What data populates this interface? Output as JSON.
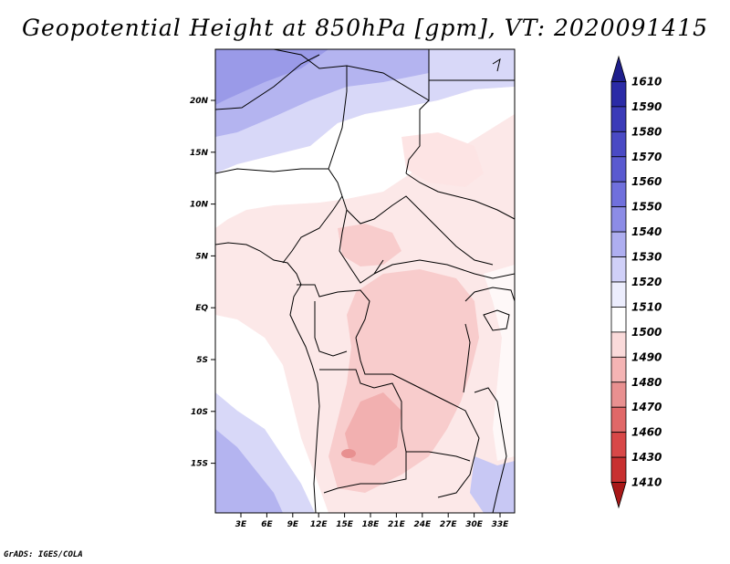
{
  "title": "Geopotential Height at 850hPa [gpm], VT: 2020091415",
  "footer": "GrADS: IGES/COLA",
  "map": {
    "lat_ticks": [
      "20N",
      "15N",
      "10N",
      "5N",
      "EQ",
      "5S",
      "10S",
      "15S"
    ],
    "lon_ticks": [
      "3E",
      "6E",
      "9E",
      "12E",
      "15E",
      "18E",
      "21E",
      "24E",
      "27E",
      "30E",
      "33E"
    ]
  },
  "colorbar": {
    "levels": [
      "1610",
      "1590",
      "1580",
      "1570",
      "1560",
      "1550",
      "1540",
      "1530",
      "1520",
      "1510",
      "1500",
      "1490",
      "1480",
      "1470",
      "1460",
      "1430",
      "1410"
    ],
    "colors": [
      "#1f1f8c",
      "#2b2ba6",
      "#3b3bb8",
      "#4a4ac4",
      "#5a5ad0",
      "#7070dc",
      "#8c8ce6",
      "#aeaef0",
      "#d0d0f8",
      "#ecedfd",
      "#ffffff",
      "#fadada",
      "#f4b4b4",
      "#e89090",
      "#e06868",
      "#d84848",
      "#c83030",
      "#a81818"
    ]
  }
}
